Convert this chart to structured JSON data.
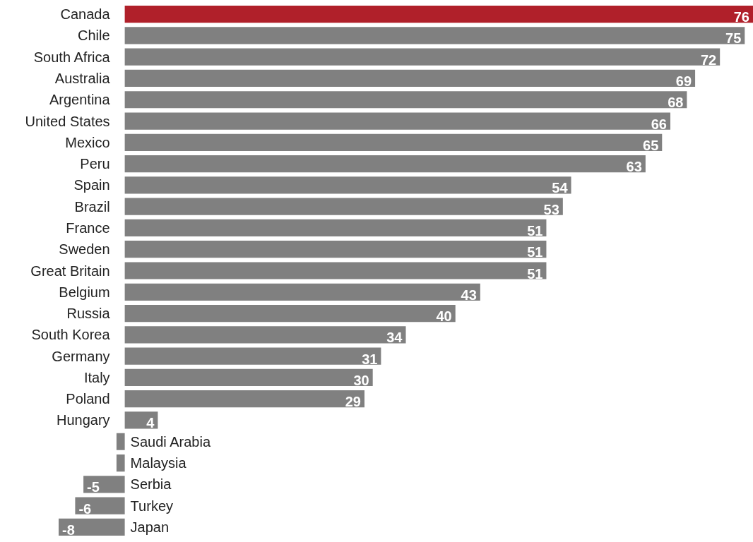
{
  "chart_data": {
    "type": "bar",
    "orientation": "horizontal",
    "tick_labels": "y",
    "categories": [
      "Canada",
      "Chile",
      "South Africa",
      "Australia",
      "Argentina",
      "United States",
      "Mexico",
      "Peru",
      "Spain",
      "Brazil",
      "France",
      "Sweden",
      "Great Britain",
      "Belgium",
      "Russia",
      "South Korea",
      "Germany",
      "Italy",
      "Poland",
      "Hungary",
      "Saudi Arabia",
      "Malaysia",
      "Serbia",
      "Turkey",
      "Japan"
    ],
    "values": [
      76,
      75,
      72,
      69,
      68,
      66,
      65,
      63,
      54,
      53,
      51,
      51,
      51,
      43,
      40,
      34,
      31,
      30,
      29,
      4,
      -1,
      -1,
      -5,
      -6,
      -8
    ],
    "value_labels": [
      "76",
      "75",
      "72",
      "69",
      "68",
      "66",
      "65",
      "63",
      "54",
      "53",
      "51",
      "51",
      "51",
      "43",
      "40",
      "34",
      "31",
      "30",
      "29",
      "4",
      null,
      null,
      "-5",
      "-6",
      "-8"
    ],
    "colors": [
      "#b0202a",
      "#808080",
      "#808080",
      "#808080",
      "#808080",
      "#808080",
      "#808080",
      "#808080",
      "#808080",
      "#808080",
      "#808080",
      "#808080",
      "#808080",
      "#808080",
      "#808080",
      "#808080",
      "#808080",
      "#808080",
      "#808080",
      "#808080",
      "#808080",
      "#808080",
      "#808080",
      "#808080",
      "#808080"
    ]
  }
}
